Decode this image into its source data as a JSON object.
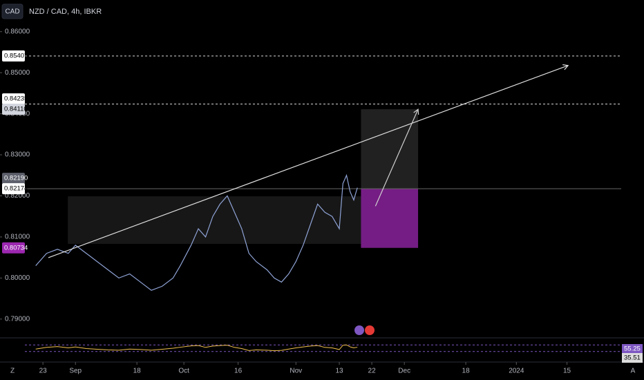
{
  "toolbar": {
    "currency_button": "CAD",
    "symbol": "NZD / CAD, 4h, IBKR"
  },
  "footer": {
    "left": "Z",
    "right": "A"
  },
  "chart_data": {
    "type": "line",
    "x": [
      -2,
      1,
      4,
      7,
      9,
      12,
      15,
      18,
      21,
      24,
      27,
      30,
      33,
      36,
      38,
      41,
      43,
      45,
      47,
      49,
      51,
      53,
      55,
      57,
      59,
      62,
      64,
      66,
      68,
      70,
      72,
      74,
      76,
      78,
      80,
      82,
      83,
      84,
      85,
      86,
      87
    ],
    "values": [
      0.803,
      0.806,
      0.807,
      0.806,
      0.808,
      0.806,
      0.804,
      0.802,
      0.8,
      0.801,
      0.799,
      0.797,
      0.798,
      0.8,
      0.803,
      0.808,
      0.812,
      0.81,
      0.815,
      0.818,
      0.82,
      0.816,
      0.812,
      0.806,
      0.804,
      0.802,
      0.8,
      0.799,
      0.801,
      0.804,
      0.808,
      0.813,
      0.818,
      0.816,
      0.815,
      0.812,
      0.823,
      0.825,
      0.821,
      0.819,
      0.822
    ],
    "color": "#8fa3d6",
    "xlim": [
      -5,
      160
    ],
    "xticks": [
      {
        "value": 0,
        "label": "23"
      },
      {
        "value": 9,
        "label": "Sep"
      },
      {
        "value": 26,
        "label": "18"
      },
      {
        "value": 39,
        "label": "Oct"
      },
      {
        "value": 54,
        "label": "16"
      },
      {
        "value": 70,
        "label": "Nov"
      },
      {
        "value": 82,
        "label": "13"
      },
      {
        "value": 91,
        "label": "22"
      },
      {
        "value": 100,
        "label": "Dec"
      },
      {
        "value": 117,
        "label": "18"
      },
      {
        "value": 131,
        "label": "2024"
      },
      {
        "value": 145,
        "label": "15"
      }
    ],
    "ylim": [
      0.7861,
      0.8677
    ],
    "yticks": [
      {
        "value": 0.79,
        "label": "0.79000"
      },
      {
        "value": 0.8,
        "label": "0.80000"
      },
      {
        "value": 0.81,
        "label": "0.81000"
      },
      {
        "value": 0.82,
        "label": "0.82000"
      },
      {
        "value": 0.83,
        "label": "0.83000"
      },
      {
        "value": 0.84,
        "label": "0.84000"
      },
      {
        "value": 0.85,
        "label": "0.85000"
      },
      {
        "value": 0.86,
        "label": "0.86000"
      }
    ],
    "price_labels": [
      {
        "value": 0.85407,
        "bg": "#ffffff",
        "fg": "#000000",
        "line": "dashed"
      },
      {
        "value": 0.84235,
        "bg": "#ffffff",
        "fg": "#000000",
        "line": "dashed"
      },
      {
        "value": {
          "value": 0.8411,
          "label": "0.84110"
        },
        "bg": "#d1d4dc",
        "fg": "#000000",
        "line": "none"
      },
      {
        "value": {
          "value": 0.8219,
          "label": "0.82190"
        },
        "bg": "#5d606b",
        "fg": "#ffffff",
        "line": "none"
      },
      {
        "value": 0.82174,
        "bg": "#ffffff",
        "fg": "#000000",
        "line": "solid"
      },
      {
        "value": 0.80734,
        "bg": "#9c27b0",
        "fg": "#ffffff",
        "line": "none"
      }
    ],
    "zones": [
      {
        "x": [
          6.9,
          88
        ],
        "y": [
          0.8083,
          0.8199
        ],
        "color": "rgba(255,255,255,0.09)"
      },
      {
        "x": [
          88,
          103.8
        ],
        "y": [
          0.82174,
          0.8411
        ],
        "color": "rgba(255,255,255,0.13)"
      },
      {
        "x": [
          88,
          103.8
        ],
        "y": [
          0.80734,
          0.82174
        ],
        "color": "rgba(156,39,176,0.75)"
      }
    ],
    "trendlines": [
      {
        "x": [
          1.5,
          145.3
        ],
        "y": [
          0.80495,
          0.85175
        ],
        "color": "#e0e0e0"
      },
      {
        "x": [
          92,
          103.8
        ],
        "y": [
          0.8175,
          0.8411
        ],
        "color": "#d0d0d0"
      }
    ],
    "rsi": {
      "values": [
        45,
        55,
        60,
        52,
        58,
        48,
        44,
        40,
        38,
        45,
        42,
        38,
        44,
        50,
        56,
        64,
        66,
        55,
        63,
        66,
        68,
        55,
        48,
        36,
        40,
        38,
        35,
        37,
        45,
        52,
        58,
        63,
        66,
        55,
        52,
        42,
        68,
        70,
        58,
        52,
        56
      ],
      "color": "#f2c14e",
      "ylim": [
        0,
        100
      ],
      "bands": [
        30,
        70
      ],
      "value_labels": [
        {
          "value": 55.25,
          "bg": "#7e57c2"
        },
        {
          "value": 35.51,
          "bg": "#dddddd"
        }
      ]
    }
  }
}
